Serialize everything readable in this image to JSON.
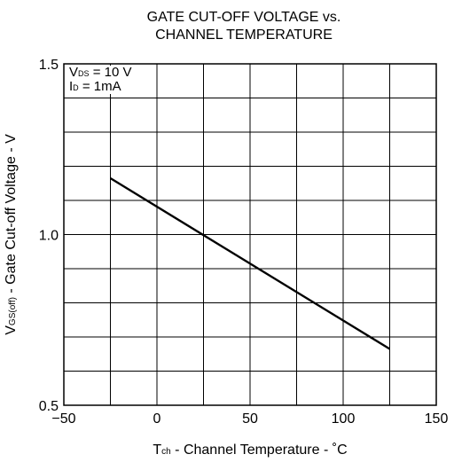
{
  "chart_data": {
    "type": "line",
    "title_lines": [
      "GATE CUT-OFF VOLTAGE vs.",
      "CHANNEL TEMPERATURE"
    ],
    "xlabel": {
      "main": "T",
      "sub": "ch",
      "rest": " - Channel Temperature - ˚C"
    },
    "ylabel": {
      "main": "V",
      "sub": "GS(off)",
      "rest": " - Gate Cut-off Voltage - V"
    },
    "xlim": [
      -50,
      150
    ],
    "ylim": [
      0.5,
      1.5
    ],
    "x_ticks": [
      -50,
      0,
      50,
      100,
      150
    ],
    "x_tick_labels": [
      "−50",
      "0",
      "50",
      "100",
      "150"
    ],
    "y_ticks": [
      0.5,
      1.0,
      1.5
    ],
    "y_tick_labels": [
      "0.5",
      "1.0",
      "1.5"
    ],
    "x_grid_step": 25,
    "y_grid_step": 0.1,
    "grid": true,
    "conditions": [
      {
        "main": "V",
        "sub": "DS",
        "rest": " = 10 V"
      },
      {
        "main": "I",
        "sub": "D",
        "rest": " = 1mA"
      }
    ],
    "series": [
      {
        "x": [
          -25,
          125
        ],
        "y": [
          1.165,
          0.665
        ]
      }
    ]
  }
}
